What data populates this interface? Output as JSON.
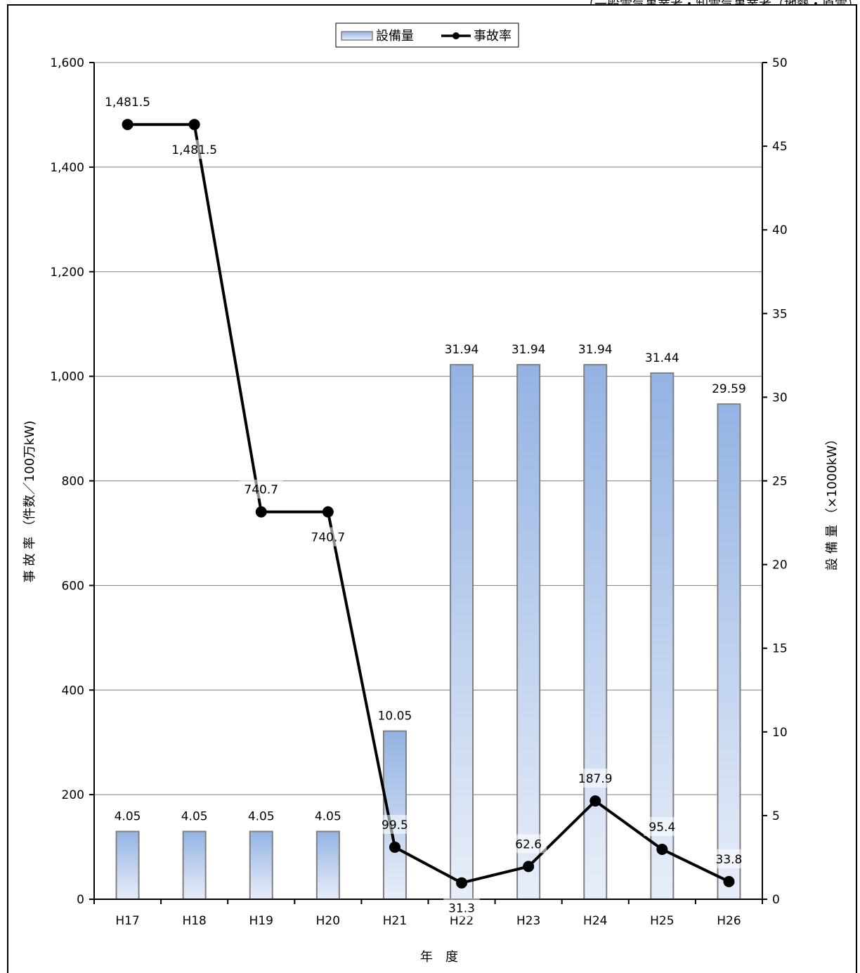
{
  "header_note": "（一般電気事業者・卸電気事業者（地熱・原電）",
  "chart_data": {
    "type": "bar+line",
    "categories": [
      "H17",
      "H18",
      "H19",
      "H20",
      "H21",
      "H22",
      "H23",
      "H24",
      "H25",
      "H26"
    ],
    "series": [
      {
        "name": "設備量",
        "type": "bar",
        "axis": "right",
        "values": [
          4.05,
          4.05,
          4.05,
          4.05,
          10.05,
          31.94,
          31.94,
          31.94,
          31.44,
          29.59
        ],
        "labels": [
          "4.05",
          "4.05",
          "4.05",
          "4.05",
          "10.05",
          "31.94",
          "31.94",
          "31.94",
          "31.44",
          "29.59"
        ]
      },
      {
        "name": "事故率",
        "type": "line",
        "axis": "left",
        "values": [
          1481.5,
          1481.5,
          740.7,
          740.7,
          99.5,
          31.3,
          62.6,
          187.9,
          95.4,
          33.8
        ],
        "labels": [
          "1,481.5",
          "1,481.5",
          "740.7",
          "740.7",
          "99.5",
          "31.3",
          "62.6",
          "187.9",
          "95.4",
          "33.8"
        ]
      }
    ],
    "xlabel": "年　度",
    "ylabel_left": "事 故 率 （件数／100万kW)",
    "ylabel_right": "設 備 量 （×1000kW）",
    "ylim_left": [
      0,
      1600
    ],
    "yticks_left": [
      "0",
      "200",
      "400",
      "600",
      "800",
      "1,000",
      "1,200",
      "1,400",
      "1,600"
    ],
    "ylim_right": [
      0,
      50
    ],
    "yticks_right": [
      "0",
      "5",
      "10",
      "15",
      "20",
      "25",
      "30",
      "35",
      "40",
      "45",
      "50"
    ],
    "grid": true,
    "legend_position": "top-center",
    "colors": {
      "bar_top": "#94b3e3",
      "bar_bottom": "#e8eef9",
      "bar_border": "#808080",
      "line": "#000000"
    }
  }
}
